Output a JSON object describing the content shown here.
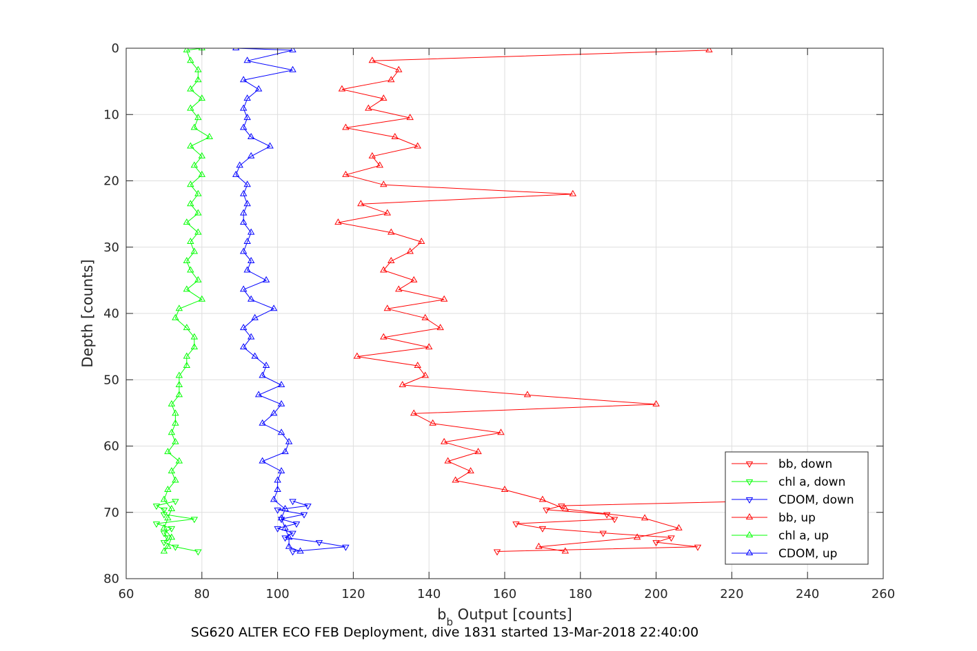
{
  "chart_data": {
    "type": "scatter",
    "xlabel": "b",
    "xlabel_sub": "b",
    "xlabel_rest": " Output [counts]",
    "ylabel": "Depth [counts]",
    "caption": "SG620 ALTER ECO FEB Deployment, dive 1831 started 13-Mar-2018 22:40:00",
    "xlim": [
      60,
      260
    ],
    "ylim": [
      0,
      80
    ],
    "y_reversed": true,
    "grid": true,
    "legend_position": "lower-right",
    "x_ticks": [
      "60",
      "80",
      "100",
      "120",
      "140",
      "160",
      "180",
      "200",
      "220",
      "240",
      "260"
    ],
    "y_ticks": [
      "0",
      "10",
      "20",
      "30",
      "40",
      "50",
      "60",
      "70",
      "80"
    ],
    "series": [
      {
        "name": "bb, down",
        "color": "#ff0000",
        "marker": "triangle-down",
        "depth": [
          68.3,
          69.0,
          69.6,
          70.3,
          71.0,
          71.7,
          72.4,
          73.1,
          73.8,
          74.5,
          75.2,
          75.9
        ],
        "values": [
          227,
          175,
          171,
          187,
          189,
          163,
          170,
          186,
          204,
          200,
          211,
          158
        ]
      },
      {
        "name": "chl a, down",
        "color": "#00ff00",
        "marker": "triangle-down",
        "depth": [
          68.3,
          69.0,
          69.6,
          70.3,
          71.0,
          71.7,
          72.4,
          73.1,
          73.8,
          74.5,
          75.2,
          75.9
        ],
        "values": [
          73,
          68,
          70,
          70,
          78,
          68,
          72,
          70,
          71,
          70,
          73,
          79
        ]
      },
      {
        "name": "CDOM, down",
        "color": "#0000ff",
        "marker": "triangle-down",
        "depth": [
          68.3,
          69.0,
          69.6,
          70.3,
          71.0,
          71.7,
          72.4,
          73.1,
          73.8,
          74.5,
          75.2,
          75.9
        ],
        "values": [
          104,
          108,
          100,
          107,
          101,
          105,
          100,
          104,
          102,
          111,
          118,
          104
        ]
      },
      {
        "name": "bb, up",
        "color": "#ff0000",
        "marker": "triangle-up",
        "depth": [
          0.3,
          1.9,
          3.3,
          4.8,
          6.2,
          7.6,
          9.1,
          10.5,
          12.0,
          13.4,
          14.8,
          16.3,
          17.7,
          19.1,
          20.6,
          22.0,
          23.5,
          24.9,
          26.3,
          27.8,
          29.2,
          30.7,
          32.1,
          33.5,
          35.0,
          36.4,
          37.9,
          39.3,
          40.7,
          42.2,
          43.6,
          45.1,
          46.5,
          47.9,
          49.4,
          50.8,
          52.3,
          53.7,
          55.1,
          56.6,
          58.0,
          59.4,
          60.9,
          62.3,
          63.8,
          65.2,
          66.6,
          68.1,
          69.5,
          70.9,
          72.4,
          73.8,
          75.2,
          75.9
        ],
        "values": [
          214,
          125,
          132,
          130,
          117,
          128,
          124,
          135,
          118,
          131,
          137,
          125,
          127,
          118,
          128,
          178,
          122,
          129,
          116,
          130,
          138,
          135,
          130,
          128,
          136,
          132,
          144,
          129,
          139,
          143,
          128,
          140,
          121,
          137,
          139,
          133,
          166,
          200,
          136,
          141,
          159,
          144,
          153,
          145,
          151,
          147,
          160,
          170,
          176,
          197,
          206,
          195,
          169,
          176
        ]
      },
      {
        "name": "chl a, up",
        "color": "#00ff00",
        "marker": "triangle-up",
        "depth": [
          0.0,
          0.3,
          1.9,
          3.3,
          4.8,
          6.2,
          7.6,
          9.1,
          10.5,
          12.0,
          13.4,
          14.8,
          16.3,
          17.7,
          19.1,
          20.6,
          22.0,
          23.5,
          24.9,
          26.3,
          27.8,
          29.2,
          30.7,
          32.1,
          33.5,
          35.0,
          36.4,
          37.9,
          39.3,
          40.7,
          42.2,
          43.6,
          45.1,
          46.5,
          47.9,
          49.4,
          50.8,
          52.3,
          53.7,
          55.1,
          56.6,
          58.0,
          59.4,
          60.9,
          62.3,
          63.8,
          65.2,
          66.6,
          68.1,
          69.5,
          70.9,
          72.4,
          73.8,
          75.2,
          75.9
        ],
        "values": [
          80,
          76,
          77,
          79,
          79,
          77,
          80,
          77,
          79,
          78,
          82,
          77,
          80,
          78,
          80,
          77,
          79,
          77,
          79,
          76,
          79,
          77,
          78,
          76,
          77,
          79,
          76,
          80,
          74,
          73,
          76,
          78,
          78,
          76,
          76,
          74,
          74,
          74,
          72,
          73,
          73,
          72,
          73,
          71,
          74,
          72,
          73,
          71,
          70,
          72,
          71,
          70,
          72,
          71,
          70
        ]
      },
      {
        "name": "CDOM, up",
        "color": "#0000ff",
        "marker": "triangle-up",
        "depth": [
          0.0,
          0.3,
          1.9,
          3.3,
          4.8,
          6.2,
          7.6,
          9.1,
          10.5,
          12.0,
          13.4,
          14.8,
          16.3,
          17.7,
          19.1,
          20.6,
          22.0,
          23.5,
          24.9,
          26.3,
          27.8,
          29.2,
          30.7,
          32.1,
          33.5,
          35.0,
          36.4,
          37.9,
          39.3,
          40.7,
          42.2,
          43.6,
          45.1,
          46.5,
          47.9,
          49.4,
          50.8,
          52.3,
          53.7,
          55.1,
          56.6,
          58.0,
          59.4,
          60.9,
          62.3,
          63.8,
          65.2,
          66.6,
          68.1,
          69.5,
          70.9,
          72.4,
          73.8,
          75.2,
          75.9
        ],
        "values": [
          89,
          104,
          92,
          104,
          91,
          95,
          92,
          91,
          92,
          91,
          93,
          98,
          93,
          90,
          89,
          92,
          91,
          92,
          91,
          91,
          93,
          92,
          91,
          93,
          92,
          97,
          91,
          93,
          99,
          94,
          91,
          93,
          91,
          94,
          97,
          96,
          101,
          95,
          101,
          99,
          96,
          101,
          103,
          102,
          96,
          101,
          100,
          100,
          99,
          102,
          101,
          102,
          103,
          103,
          106
        ]
      }
    ]
  }
}
